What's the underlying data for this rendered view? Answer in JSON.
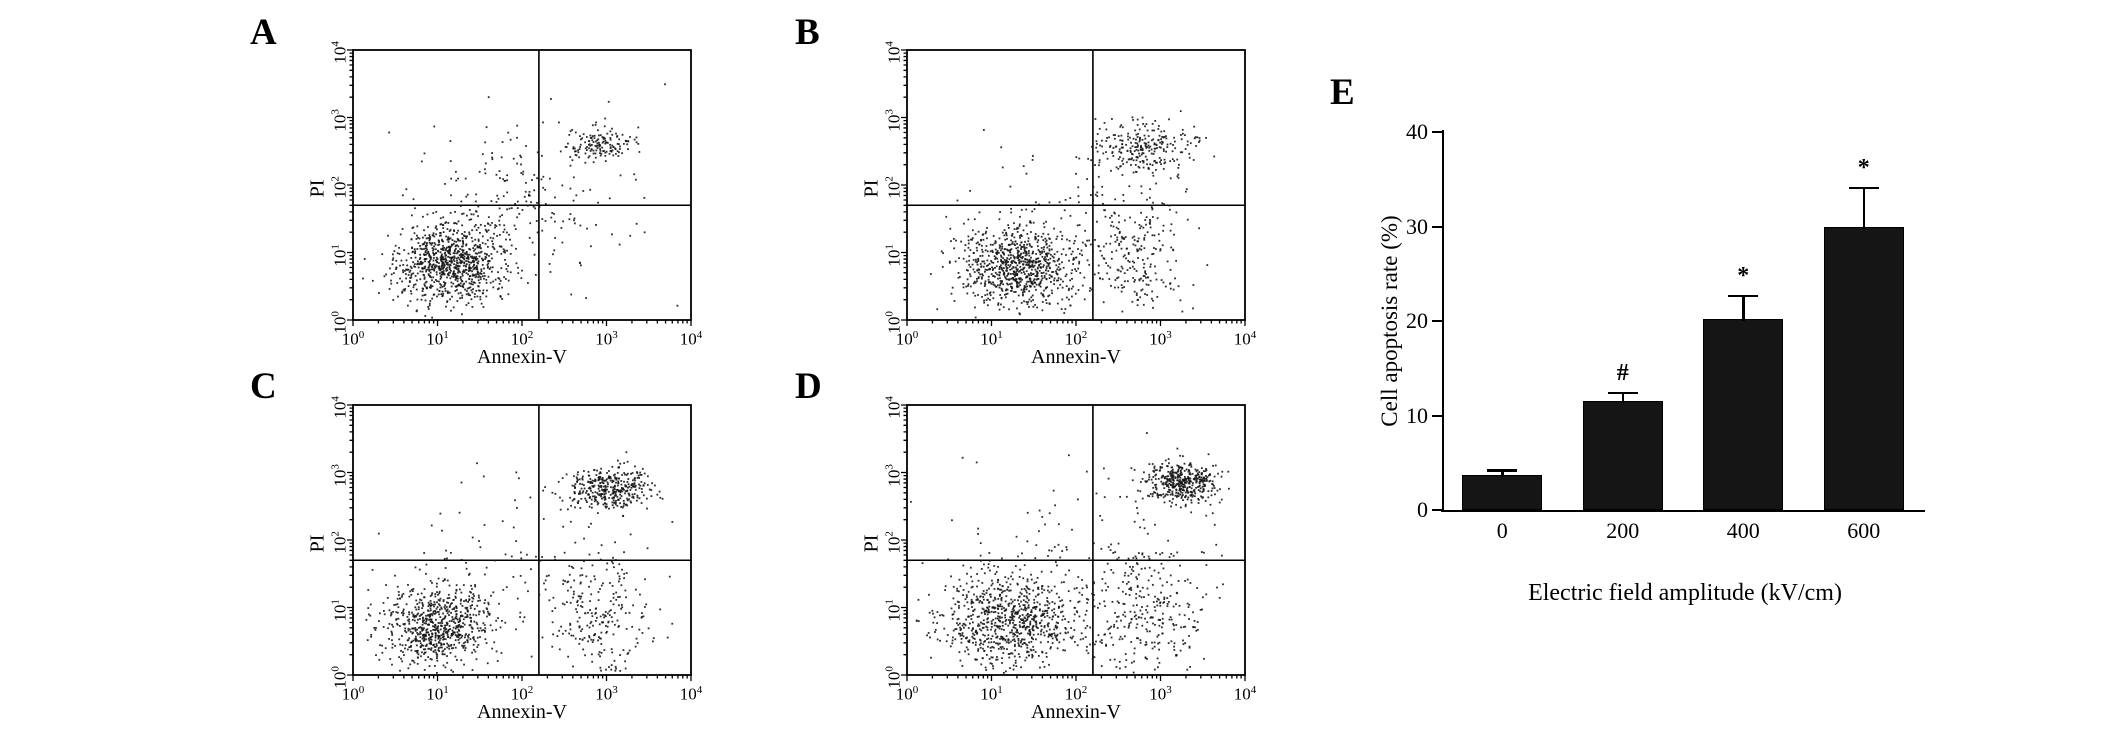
{
  "panels": {
    "A": {
      "label": "A"
    },
    "B": {
      "label": "B"
    },
    "C": {
      "label": "C"
    },
    "D": {
      "label": "D"
    },
    "E": {
      "label": "E"
    }
  },
  "scatter_common": {
    "x_label": "Annexin-V",
    "y_label": "PI",
    "tick_base": "10",
    "tick_exponents": [
      0,
      1,
      2,
      3,
      4
    ],
    "quadrant_split_log": {
      "x": 2.2,
      "y": 1.7
    },
    "dot_color": "#161616"
  },
  "chart_data": [
    {
      "type": "scatter",
      "panel": "A",
      "xlabel": "Annexin-V",
      "ylabel": "PI",
      "x_range_log10": [
        0,
        4
      ],
      "y_range_log10": [
        0,
        4
      ],
      "clusters": [
        {
          "name": "viable-cells",
          "cx": 1.15,
          "cy": 0.85,
          "sx": 0.33,
          "sy": 0.28,
          "n": 900
        },
        {
          "name": "transition",
          "cx": 1.9,
          "cy": 1.8,
          "sx": 0.5,
          "sy": 0.5,
          "n": 130
        },
        {
          "name": "late-apoptotic",
          "cx": 2.95,
          "cy": 2.6,
          "sx": 0.18,
          "sy": 0.13,
          "n": 150
        },
        {
          "name": "scattered",
          "cx": 2.2,
          "cy": 1.5,
          "sx": 0.8,
          "sy": 0.7,
          "n": 90
        }
      ]
    },
    {
      "type": "scatter",
      "panel": "B",
      "xlabel": "Annexin-V",
      "ylabel": "PI",
      "x_range_log10": [
        0,
        4
      ],
      "y_range_log10": [
        0,
        4
      ],
      "clusters": [
        {
          "name": "viable-cells",
          "cx": 1.35,
          "cy": 0.8,
          "sx": 0.35,
          "sy": 0.3,
          "n": 850
        },
        {
          "name": "early-apoptotic",
          "cx": 2.75,
          "cy": 0.95,
          "sx": 0.25,
          "sy": 0.45,
          "n": 210
        },
        {
          "name": "late-apoptotic",
          "cx": 2.8,
          "cy": 2.55,
          "sx": 0.3,
          "sy": 0.2,
          "n": 260
        },
        {
          "name": "scattered",
          "cx": 2.2,
          "cy": 1.5,
          "sx": 0.8,
          "sy": 0.7,
          "n": 100
        }
      ]
    },
    {
      "type": "scatter",
      "panel": "C",
      "xlabel": "Annexin-V",
      "ylabel": "PI",
      "x_range_log10": [
        0,
        4
      ],
      "y_range_log10": [
        0,
        4
      ],
      "clusters": [
        {
          "name": "viable-cells",
          "cx": 1.0,
          "cy": 0.75,
          "sx": 0.32,
          "sy": 0.3,
          "n": 750
        },
        {
          "name": "early-apoptotic",
          "cx": 2.9,
          "cy": 0.95,
          "sx": 0.3,
          "sy": 0.5,
          "n": 250
        },
        {
          "name": "late-apoptotic",
          "cx": 3.05,
          "cy": 2.75,
          "sx": 0.25,
          "sy": 0.15,
          "n": 380
        },
        {
          "name": "scattered",
          "cx": 2.0,
          "cy": 1.6,
          "sx": 0.9,
          "sy": 0.8,
          "n": 90
        }
      ]
    },
    {
      "type": "scatter",
      "panel": "D",
      "xlabel": "Annexin-V",
      "ylabel": "PI",
      "x_range_log10": [
        0,
        4
      ],
      "y_range_log10": [
        0,
        4
      ],
      "clusters": [
        {
          "name": "viable-cells",
          "cx": 1.2,
          "cy": 0.8,
          "sx": 0.4,
          "sy": 0.35,
          "n": 820
        },
        {
          "name": "early-apoptotic",
          "cx": 2.8,
          "cy": 0.95,
          "sx": 0.35,
          "sy": 0.5,
          "n": 300
        },
        {
          "name": "late-apoptotic",
          "cx": 3.25,
          "cy": 2.85,
          "sx": 0.22,
          "sy": 0.15,
          "n": 430
        },
        {
          "name": "scattered",
          "cx": 2.1,
          "cy": 1.6,
          "sx": 0.9,
          "sy": 0.8,
          "n": 120
        }
      ]
    },
    {
      "type": "bar",
      "panel": "E",
      "categories": [
        "0",
        "200",
        "400",
        "600"
      ],
      "values": [
        3.5,
        11.3,
        20.0,
        29.7
      ],
      "errors": [
        0.8,
        1.2,
        2.8,
        4.5
      ],
      "significance": [
        "",
        "#",
        "*",
        "*"
      ],
      "xlabel": "Electric field amplitude (kV/cm)",
      "ylabel": "Cell apoptosis rate (%)",
      "ylim": [
        0,
        40
      ],
      "yticks": [
        0,
        10,
        20,
        30,
        40
      ],
      "bar_color": "#151515"
    }
  ]
}
